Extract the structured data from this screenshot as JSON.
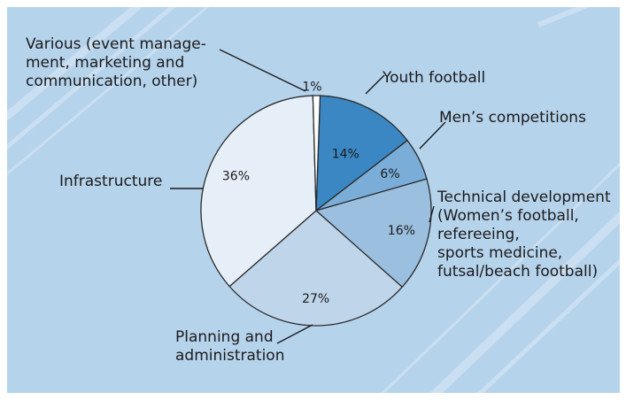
{
  "chart_data": {
    "type": "pie",
    "background_color": "#b6d3ec",
    "slices": [
      {
        "label_lines": [
          "Youth football"
        ],
        "value": 14,
        "pct_label": "14%",
        "color": "#3a87c3"
      },
      {
        "label_lines": [
          "Men’s competitions"
        ],
        "value": 6,
        "pct_label": "6%",
        "color": "#7aaed8"
      },
      {
        "label_lines": [
          "Technical development",
          "(Women’s football,",
          "refereeing,",
          "sports medicine,",
          "futsal/beach football)"
        ],
        "value": 16,
        "pct_label": "16%",
        "color": "#9bbfde"
      },
      {
        "label_lines": [
          "Planning and",
          "administration"
        ],
        "value": 27,
        "pct_label": "27%",
        "color": "#bed5ea"
      },
      {
        "label_lines": [
          "Infrastructure"
        ],
        "value": 36,
        "pct_label": "36%",
        "color": "#e6eff8"
      },
      {
        "label_lines": [
          "Various (event manage-",
          "ment, marketing and",
          "communication, other)"
        ],
        "value": 1,
        "pct_label": "1%",
        "color": "#ffffff"
      }
    ]
  }
}
